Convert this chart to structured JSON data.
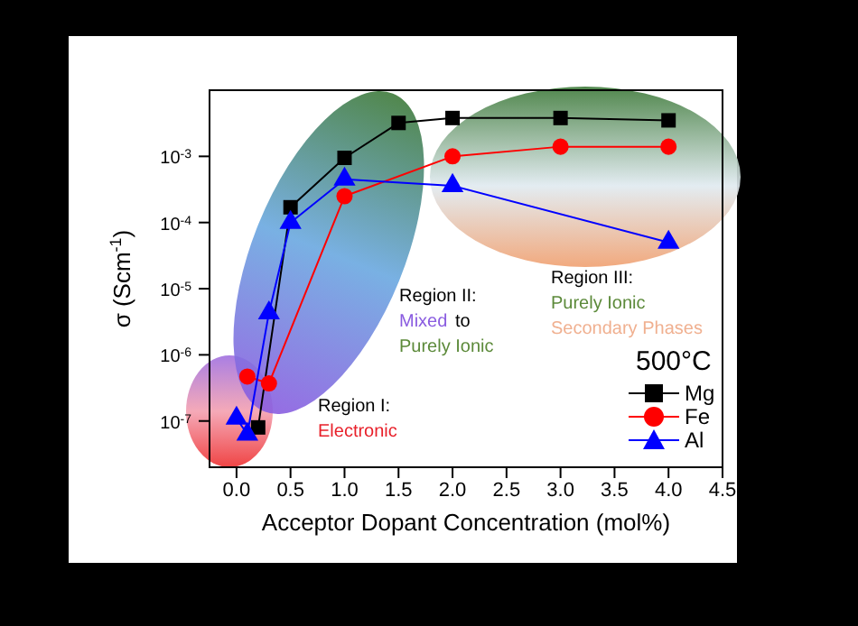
{
  "chart_data": {
    "type": "line",
    "xlabel": "Acceptor Dopant Concentration (mol%)",
    "ylabel": "σ (Scm$^{-1}$)",
    "legend_title": "500°C",
    "legend": "bottom right",
    "log": "y",
    "xlim": [
      -0.25,
      4.5
    ],
    "xticks": [
      {
        "value": 0,
        "label": "0.0"
      },
      0.5,
      {
        "value": 1,
        "label": "1.0"
      },
      1.5,
      {
        "value": 2,
        "label": "2.0"
      },
      2.5,
      {
        "value": 3,
        "label": "3.0"
      },
      3.5,
      {
        "value": 4,
        "label": "4.0"
      },
      4.5
    ],
    "ylim": [
      2e-08,
      0.01
    ],
    "yticks": [
      {
        "value": 1e-07,
        "label": "10$^{-7}$"
      },
      {
        "value": 1e-06,
        "label": "10$^{-6}$"
      },
      {
        "value": 1e-05,
        "label": "10$^{-5}$"
      },
      {
        "value": 0.0001,
        "label": "10$^{-4}$"
      },
      {
        "value": 0.001,
        "label": "10$^{-3}$"
      }
    ],
    "series": [
      {
        "name": "Mg",
        "color": "#000000",
        "marker": "square",
        "x": [
          0.2,
          0.5,
          1.0,
          1.5,
          2.0,
          3.0,
          4.0
        ],
        "values": [
          8e-08,
          0.00017,
          0.00095,
          0.0032,
          0.0038,
          0.0038,
          0.0035
        ]
      },
      {
        "name": "Fe",
        "color": "#ff0000",
        "marker": "circle",
        "x": [
          0.1,
          0.3,
          1.0,
          2.0,
          3.0,
          4.0
        ],
        "values": [
          4.7e-07,
          3.7e-07,
          0.00025,
          0.001,
          0.0014,
          0.0014
        ]
      },
      {
        "name": "Al",
        "color": "#0000ff",
        "marker": "triangle",
        "x": [
          0.0,
          0.1,
          0.3,
          0.5,
          1.0,
          2.0,
          4.0
        ],
        "values": [
          1.1e-07,
          6.3e-08,
          4.3e-06,
          0.0001,
          0.00045,
          0.00036,
          5e-05
        ]
      }
    ],
    "annotations": [
      "Region I:",
      "Electronic",
      "Region II:",
      "Mixed",
      "to",
      "Purely Ionic",
      "Region III:",
      "Purely Ionic",
      "Secondary Phases"
    ]
  }
}
